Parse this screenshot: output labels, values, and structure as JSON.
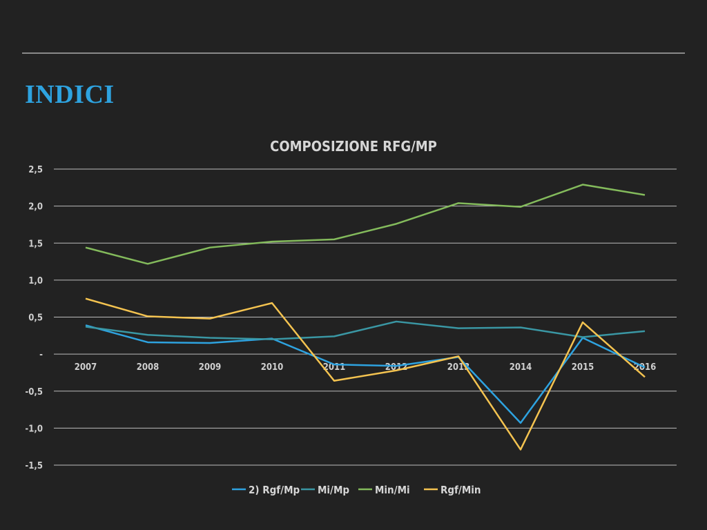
{
  "slide": {
    "title": "INDICI"
  },
  "chart_data": {
    "type": "line",
    "title": "COMPOSIZIONE RFG/MP",
    "xlabel": "",
    "ylabel": "",
    "categories": [
      "2007",
      "2008",
      "2009",
      "2010",
      "2011",
      "2012",
      "2013",
      "2014",
      "2015",
      "2016"
    ],
    "ylim": [
      -1.5,
      2.5
    ],
    "yticks": [
      2.5,
      2.0,
      1.5,
      1.0,
      0.5,
      0,
      -0.5,
      -1.0,
      -1.5
    ],
    "ytick_labels": [
      "2,5",
      "2,0",
      "1,5",
      "1,0",
      "0,5",
      "-",
      "-0,5",
      "-1,0",
      "-1,5"
    ],
    "grid": true,
    "legend_position": "bottom",
    "series": [
      {
        "name": "2) Rgf/Mp",
        "color": "#2ea3e0",
        "values": [
          0.39,
          0.16,
          0.15,
          0.21,
          -0.14,
          -0.16,
          -0.04,
          -0.93,
          0.22,
          -0.18
        ]
      },
      {
        "name": "Mi/Mp",
        "color": "#3a97a4",
        "values": [
          0.37,
          0.26,
          0.22,
          0.2,
          0.24,
          0.44,
          0.35,
          0.36,
          0.23,
          0.31
        ]
      },
      {
        "name": "Min/Mi",
        "color": "#84bb5c",
        "values": [
          1.44,
          1.22,
          1.44,
          1.52,
          1.55,
          1.76,
          2.04,
          1.99,
          2.29,
          2.15
        ]
      },
      {
        "name": "Rgf/Min",
        "color": "#f4c350",
        "values": [
          0.75,
          0.51,
          0.48,
          0.69,
          -0.36,
          -0.22,
          -0.03,
          -1.29,
          0.43,
          -0.31
        ]
      }
    ]
  }
}
